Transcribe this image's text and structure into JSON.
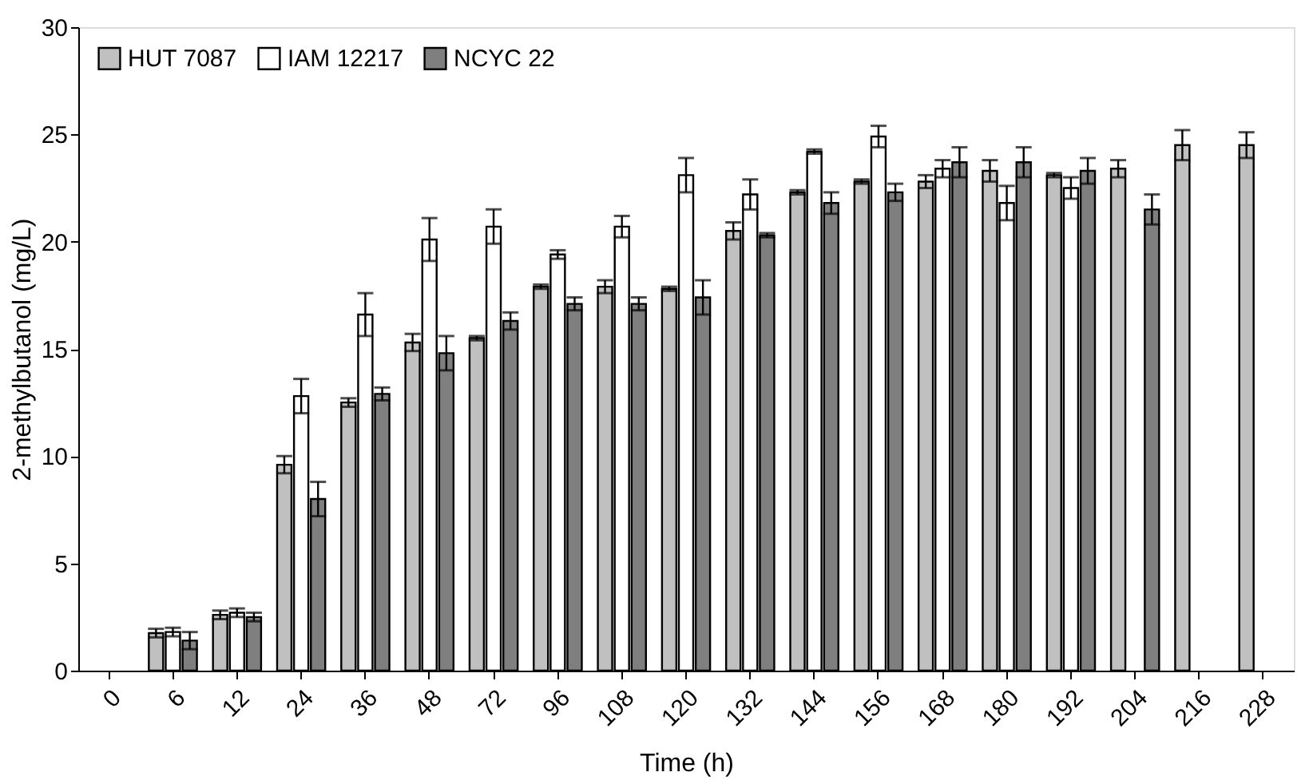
{
  "chart_data": {
    "type": "bar",
    "xlabel": "Time (h)",
    "ylabel": "2-methylbutanol (mg/L)",
    "categories": [
      "0",
      "6",
      "12",
      "24",
      "36",
      "48",
      "72",
      "96",
      "108",
      "120",
      "132",
      "144",
      "156",
      "168",
      "180",
      "192",
      "204",
      "216",
      "228"
    ],
    "series": [
      {
        "name": "HUT 7087",
        "color": "#c0c0c0",
        "values": [
          null,
          1.75,
          2.6,
          9.6,
          12.5,
          15.3,
          15.5,
          17.9,
          17.9,
          17.8,
          20.5,
          22.3,
          22.8,
          22.8,
          23.3,
          23.1,
          23.4,
          24.5,
          24.5
        ],
        "errors": [
          null,
          0.2,
          0.2,
          0.4,
          0.2,
          0.4,
          0.1,
          0.1,
          0.3,
          0.1,
          0.4,
          0.1,
          0.1,
          0.3,
          0.5,
          0.1,
          0.4,
          0.7,
          0.6
        ]
      },
      {
        "name": "IAM 12217",
        "color": "#ffffff",
        "values": [
          null,
          1.8,
          2.7,
          12.8,
          16.6,
          20.1,
          20.7,
          19.4,
          20.7,
          23.1,
          22.2,
          24.2,
          24.9,
          23.4,
          21.8,
          22.5,
          null,
          null,
          null
        ],
        "errors": [
          null,
          0.2,
          0.2,
          0.8,
          1.0,
          1.0,
          0.8,
          0.2,
          0.5,
          0.8,
          0.7,
          0.1,
          0.5,
          0.4,
          0.8,
          0.5,
          null,
          null,
          null
        ]
      },
      {
        "name": "NCYC 22",
        "color": "#7f7f7f",
        "values": [
          null,
          1.4,
          2.5,
          8.0,
          12.9,
          14.8,
          16.3,
          17.1,
          17.1,
          17.4,
          20.3,
          21.8,
          22.3,
          23.7,
          23.7,
          23.3,
          21.5,
          null,
          null
        ],
        "errors": [
          null,
          0.4,
          0.2,
          0.8,
          0.3,
          0.8,
          0.4,
          0.3,
          0.3,
          0.8,
          0.1,
          0.5,
          0.4,
          0.7,
          0.7,
          0.6,
          0.7,
          null,
          null
        ]
      }
    ],
    "ylim": [
      0,
      30
    ],
    "yticks": [
      0,
      5,
      10,
      15,
      20,
      25,
      30
    ],
    "grid": false,
    "legend": "top left"
  }
}
